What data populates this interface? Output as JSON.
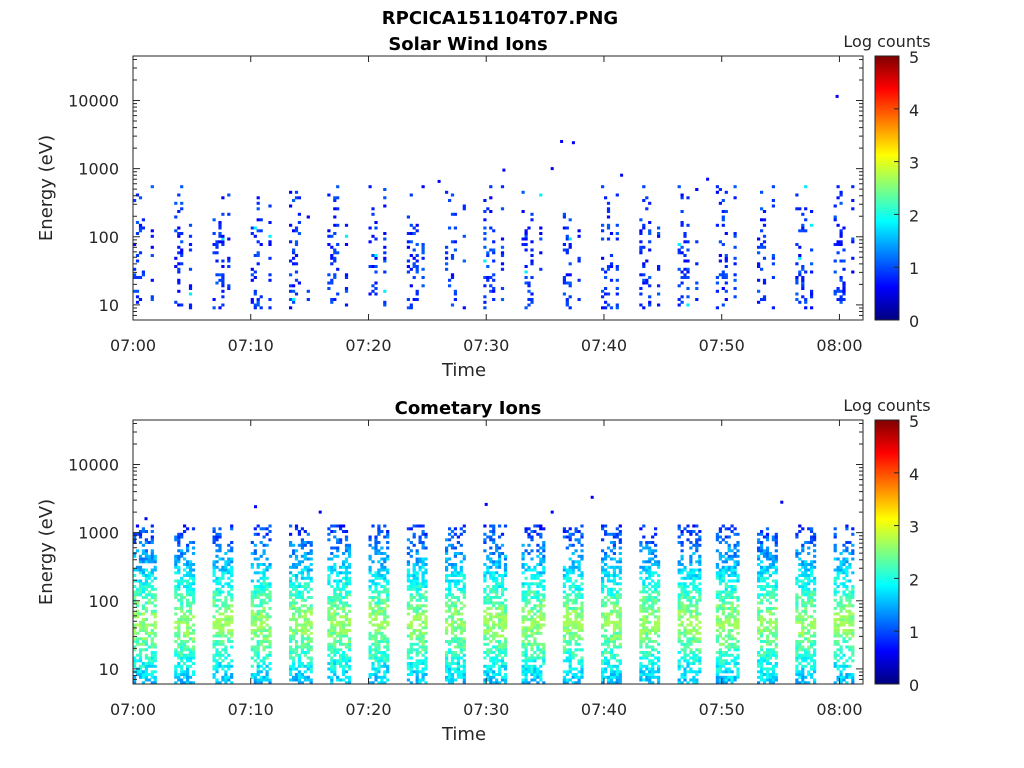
{
  "figure_title": "RPCICA151104T07.PNG",
  "colormap": [
    "#00007f",
    "#0000ff",
    "#007fff",
    "#00ffff",
    "#7fff7f",
    "#ffff00",
    "#ff7f00",
    "#ff0000",
    "#7f0000"
  ],
  "chart_data": [
    {
      "type": "heatmap",
      "title": "Solar Wind Ions",
      "xlabel": "Time",
      "ylabel": "Energy (eV)",
      "x_range": [
        "07:00",
        "08:02"
      ],
      "x_ticks": [
        "07:00",
        "07:10",
        "07:20",
        "07:30",
        "07:40",
        "07:50",
        "08:00"
      ],
      "y_scale": "log",
      "y_range": [
        6,
        45000
      ],
      "y_ticks": [
        "10",
        "100",
        "1000",
        "10000"
      ],
      "colorbar": {
        "label": "Log counts",
        "range": [
          0,
          5
        ],
        "ticks": [
          "0",
          "1",
          "2",
          "3",
          "4",
          "5"
        ]
      },
      "sweep_period_min": 3.3,
      "typical_log_counts": 0.6,
      "max_log_counts": 1.8,
      "energy_band_eV": [
        10,
        400
      ],
      "outliers": [
        {
          "time": "07:59.8",
          "energy_eV": 11500,
          "log_counts": 0.6
        },
        {
          "time": "07:36.4",
          "energy_eV": 2500,
          "log_counts": 0.6
        },
        {
          "time": "07:37.4",
          "energy_eV": 2400,
          "log_counts": 0.6
        },
        {
          "time": "07:35.6",
          "energy_eV": 1000,
          "log_counts": 0.6
        },
        {
          "time": "07:31.5",
          "energy_eV": 950,
          "log_counts": 0.6
        },
        {
          "time": "07:41.5",
          "energy_eV": 800,
          "log_counts": 0.6
        },
        {
          "time": "07:48.8",
          "energy_eV": 700,
          "log_counts": 0.6
        },
        {
          "time": "07:26.0",
          "energy_eV": 650,
          "log_counts": 0.6
        }
      ]
    },
    {
      "type": "heatmap",
      "title": "Cometary Ions",
      "xlabel": "Time",
      "ylabel": "Energy (eV)",
      "x_range": [
        "07:00",
        "08:02"
      ],
      "x_ticks": [
        "07:00",
        "07:10",
        "07:20",
        "07:30",
        "07:40",
        "07:50",
        "08:00"
      ],
      "y_scale": "log",
      "y_range": [
        6,
        45000
      ],
      "y_ticks": [
        "10",
        "100",
        "1000",
        "10000"
      ],
      "colorbar": {
        "label": "Log counts",
        "range": [
          0,
          5
        ],
        "ticks": [
          "0",
          "1",
          "2",
          "3",
          "4",
          "5"
        ]
      },
      "sweep_period_min": 3.3,
      "typical_log_counts": 1.5,
      "max_log_counts": 2.7,
      "energy_band_eV": [
        7,
        1000
      ],
      "outliers": [
        {
          "time": "07:39.0",
          "energy_eV": 3300,
          "log_counts": 0.6
        },
        {
          "time": "07:55.1",
          "energy_eV": 2800,
          "log_counts": 0.6
        },
        {
          "time": "07:30.0",
          "energy_eV": 2600,
          "log_counts": 0.6
        },
        {
          "time": "07:10.4",
          "energy_eV": 2400,
          "log_counts": 0.6
        },
        {
          "time": "07:15.9",
          "energy_eV": 2000,
          "log_counts": 0.6
        },
        {
          "time": "07:35.6",
          "energy_eV": 2000,
          "log_counts": 0.6
        },
        {
          "time": "07:01.1",
          "energy_eV": 1600,
          "log_counts": 0.6
        }
      ]
    }
  ]
}
